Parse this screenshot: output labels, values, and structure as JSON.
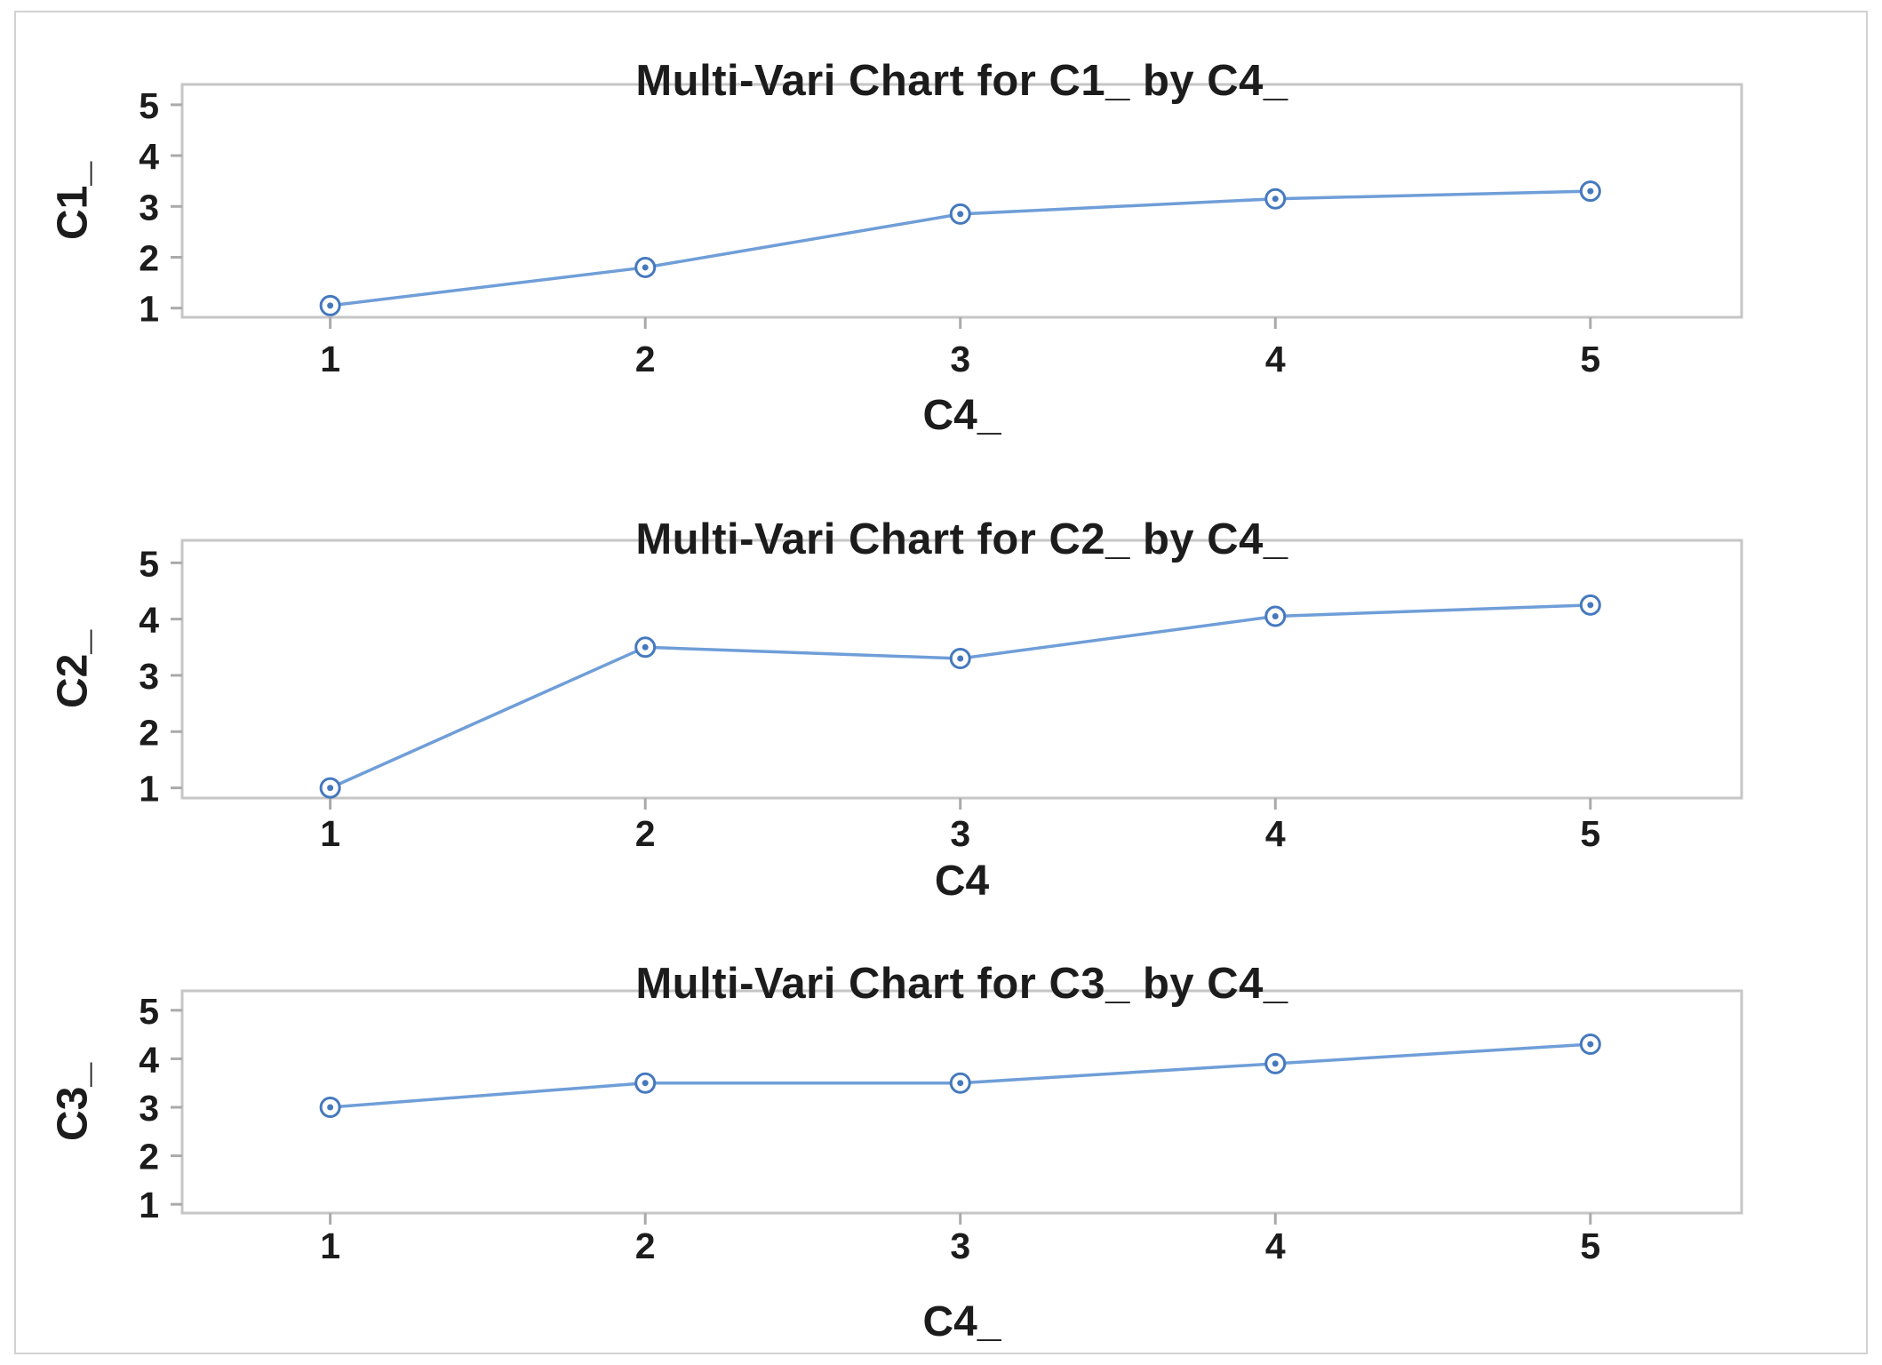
{
  "page": {
    "background_color": "#ffffff",
    "frame_border_color": "#d2d2d2",
    "text_color": "#1c1c1c",
    "plot_border_color": "#c6c6c6",
    "tick_color": "#aaaaaa"
  },
  "chart_data": [
    {
      "type": "line",
      "title": "Multi-Vari Chart for C1_ by C4_",
      "xlabel": "C4_",
      "ylabel": "C1_",
      "x": [
        1,
        2,
        3,
        4,
        5
      ],
      "values": [
        1.05,
        1.8,
        2.85,
        3.15,
        3.3
      ],
      "xticks": [
        1,
        2,
        3,
        4,
        5
      ],
      "yticks": [
        1,
        2,
        3,
        4,
        5
      ],
      "xlim": [
        0.53,
        5.48
      ],
      "ylim": [
        0.82,
        5.4
      ],
      "grid": false,
      "legend": null,
      "marker": "open-circle-with-center-dot",
      "line_color": "#6f9ed8",
      "marker_color": "#4579be"
    },
    {
      "type": "line",
      "title": "Multi-Vari Chart for C2_ by C4_",
      "xlabel": "C4",
      "ylabel": "C2_",
      "x": [
        1,
        2,
        3,
        4,
        5
      ],
      "values": [
        1.0,
        3.5,
        3.3,
        4.05,
        4.25
      ],
      "xticks": [
        1,
        2,
        3,
        4,
        5
      ],
      "yticks": [
        1,
        2,
        3,
        4,
        5
      ],
      "xlim": [
        0.53,
        5.48
      ],
      "ylim": [
        0.82,
        5.4
      ],
      "grid": false,
      "legend": null,
      "marker": "open-circle-with-center-dot",
      "line_color": "#6f9ed8",
      "marker_color": "#4579be"
    },
    {
      "type": "line",
      "title": "Multi-Vari Chart for C3_ by C4_",
      "xlabel": "C4_",
      "ylabel": "C3_",
      "x": [
        1,
        2,
        3,
        4,
        5
      ],
      "values": [
        3.0,
        3.5,
        3.5,
        3.9,
        4.3
      ],
      "xticks": [
        1,
        2,
        3,
        4,
        5
      ],
      "yticks": [
        1,
        2,
        3,
        4,
        5
      ],
      "xlim": [
        0.53,
        5.48
      ],
      "ylim": [
        0.82,
        5.4
      ],
      "grid": false,
      "legend": null,
      "marker": "open-circle-with-center-dot",
      "line_color": "#6f9ed8",
      "marker_color": "#4579be"
    }
  ]
}
